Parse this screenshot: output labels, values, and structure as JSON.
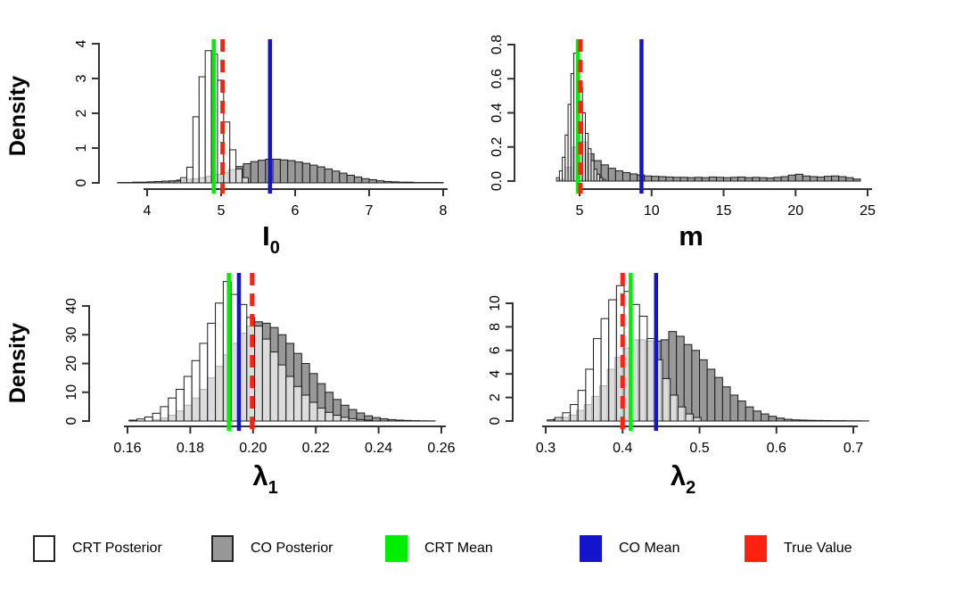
{
  "figure": {
    "background": "#ffffff"
  },
  "colors": {
    "crt_fill": "#ffffff",
    "crt_fill_overlay": "rgba(255,255,255,0.66)",
    "co_fill": "#989898",
    "bar_stroke": "#1b1b1b",
    "axis_color": "#333333",
    "crt_mean": "#00ee00",
    "co_mean": "#1414cc",
    "true_value": "#ff2211"
  },
  "legend": {
    "items": [
      {
        "label": "CRT Posterior",
        "swatch": "crt_fill",
        "border": true
      },
      {
        "label": "CO Posterior",
        "swatch": "co_fill",
        "border": true
      },
      {
        "label": "CRT Mean",
        "swatch": "crt_mean",
        "border": false
      },
      {
        "label": "CO Mean",
        "swatch": "co_mean",
        "border": false
      },
      {
        "label": "True Value",
        "swatch": "true_value",
        "border": false
      }
    ]
  },
  "chart_data": [
    {
      "id": "i0",
      "type": "bar",
      "title": "",
      "xlabel": {
        "base": "I",
        "sub": "0"
      },
      "ylabel": "Density",
      "x_ticks": [
        4,
        5,
        6,
        7,
        8
      ],
      "x_tick_labels": [
        "4",
        "5",
        "6",
        "7",
        "8"
      ],
      "y_ticks": [
        0,
        1,
        2,
        3,
        4
      ],
      "y_tick_labels": [
        "0",
        "1",
        "2",
        "3",
        "4"
      ],
      "xlim": [
        3.6,
        8.05
      ],
      "ylim": [
        0,
        4.1
      ],
      "series": [
        {
          "name": "CO Posterior",
          "bin_start": 3.6,
          "bin_width": 0.1,
          "heights": [
            0.01,
            0.01,
            0.02,
            0.02,
            0.03,
            0.04,
            0.05,
            0.06,
            0.08,
            0.1,
            0.12,
            0.15,
            0.19,
            0.24,
            0.3,
            0.38,
            0.47,
            0.55,
            0.61,
            0.65,
            0.68,
            0.68,
            0.66,
            0.64,
            0.6,
            0.56,
            0.51,
            0.46,
            0.4,
            0.34,
            0.28,
            0.22,
            0.17,
            0.12,
            0.09,
            0.06,
            0.04,
            0.03,
            0.02,
            0.02,
            0.01,
            0.01,
            0.01,
            0.01
          ]
        },
        {
          "name": "CRT Posterior",
          "bin_start": 4.37,
          "bin_width": 0.083,
          "heights": [
            0.05,
            0.15,
            0.45,
            1.9,
            3.05,
            3.8,
            3.7,
            2.95,
            1.75,
            0.95,
            0.4,
            0.15
          ]
        }
      ],
      "lines": [
        {
          "name": "CRT Mean",
          "value": 4.9,
          "dashed": false
        },
        {
          "name": "CO Mean",
          "value": 5.66,
          "dashed": false
        },
        {
          "name": "True Value",
          "value": 5.02,
          "dashed": true
        }
      ]
    },
    {
      "id": "m",
      "type": "bar",
      "title": "",
      "xlabel": {
        "base": "m",
        "sub": ""
      },
      "ylabel": "",
      "x_ticks": [
        5,
        10,
        15,
        20,
        25
      ],
      "x_tick_labels": [
        "5",
        "10",
        "15",
        "20",
        "25"
      ],
      "y_ticks": [
        0.0,
        0.2,
        0.4,
        0.6,
        0.8
      ],
      "y_tick_labels": [
        "0.0",
        "0.2",
        "0.4",
        "0.6",
        "0.8"
      ],
      "xlim": [
        3.4,
        25
      ],
      "ylim": [
        0,
        0.82
      ],
      "series": [
        {
          "name": "CO Posterior",
          "bin_start": 3.5,
          "bin_width": 0.5,
          "heights": [
            0.01,
            0.08,
            0.2,
            0.23,
            0.16,
            0.12,
            0.095,
            0.075,
            0.06,
            0.05,
            0.042,
            0.036,
            0.03,
            0.028,
            0.026,
            0.024,
            0.022,
            0.022,
            0.02,
            0.022,
            0.02,
            0.024,
            0.022,
            0.02,
            0.022,
            0.024,
            0.02,
            0.022,
            0.02,
            0.018,
            0.022,
            0.026,
            0.035,
            0.04,
            0.03,
            0.026,
            0.024,
            0.028,
            0.03,
            0.026,
            0.02,
            0.012
          ]
        },
        {
          "name": "CRT Posterior",
          "bin_start": 3.4,
          "bin_width": 0.2,
          "heights": [
            0.02,
            0.06,
            0.14,
            0.27,
            0.45,
            0.63,
            0.75,
            0.72,
            0.55,
            0.4,
            0.28,
            0.19,
            0.12,
            0.07,
            0.04,
            0.02,
            0.01
          ]
        }
      ],
      "lines": [
        {
          "name": "CRT Mean",
          "value": 4.88,
          "dashed": false
        },
        {
          "name": "CO Mean",
          "value": 9.3,
          "dashed": false
        },
        {
          "name": "True Value",
          "value": 5.05,
          "dashed": true
        }
      ]
    },
    {
      "id": "lambda1",
      "type": "bar",
      "title": "",
      "xlabel": {
        "base": "λ",
        "sub": "1"
      },
      "ylabel": "Density",
      "x_ticks": [
        0.16,
        0.18,
        0.2,
        0.22,
        0.24,
        0.26
      ],
      "x_tick_labels": [
        "0.16",
        "0.18",
        "0.20",
        "0.22",
        "0.24",
        "0.26"
      ],
      "y_ticks": [
        0,
        10,
        20,
        30,
        40
      ],
      "y_tick_labels": [
        "0",
        "10",
        "20",
        "30",
        "40"
      ],
      "xlim": [
        0.155,
        0.262
      ],
      "ylim": [
        0,
        50
      ],
      "series": [
        {
          "name": "CO Posterior",
          "bin_start": 0.168,
          "bin_width": 0.0025,
          "heights": [
            0.5,
            1,
            2,
            3.5,
            5.5,
            8,
            11,
            15,
            19,
            23,
            27,
            30.5,
            33,
            34.5,
            34,
            32.5,
            30,
            27,
            23.5,
            20,
            16.5,
            13,
            10,
            7.5,
            5.5,
            4,
            2.8,
            1.8,
            1.2,
            0.8,
            0.5,
            0.3,
            0.2,
            0.12,
            0.08,
            0.05
          ]
        },
        {
          "name": "CRT Posterior",
          "bin_start": 0.1605,
          "bin_width": 0.0025,
          "heights": [
            0.3,
            0.7,
            1.4,
            2.7,
            5,
            8,
            11,
            15.5,
            21,
            27,
            34,
            41,
            48.5,
            44,
            40.5,
            36,
            33,
            28.5,
            24,
            19.5,
            15.5,
            12,
            9,
            6.5,
            4.5,
            3,
            2,
            1.3,
            0.8,
            0.5,
            0.3
          ]
        }
      ],
      "lines": [
        {
          "name": "CRT Mean",
          "value": 0.1923,
          "dashed": false
        },
        {
          "name": "CO Mean",
          "value": 0.1955,
          "dashed": false
        },
        {
          "name": "True Value",
          "value": 0.1997,
          "dashed": true
        }
      ]
    },
    {
      "id": "lambda2",
      "type": "bar",
      "title": "",
      "xlabel": {
        "base": "λ",
        "sub": "2"
      },
      "ylabel": "",
      "x_ticks": [
        0.3,
        0.4,
        0.5,
        0.6,
        0.7
      ],
      "x_tick_labels": [
        "0.3",
        "0.4",
        "0.5",
        "0.6",
        "0.7"
      ],
      "y_ticks": [
        0,
        2,
        4,
        6,
        8,
        10
      ],
      "y_tick_labels": [
        "0",
        "2",
        "4",
        "6",
        "8",
        "10"
      ],
      "xlim": [
        0.29,
        0.72
      ],
      "ylim": [
        0,
        11.8
      ],
      "series": [
        {
          "name": "CO Posterior",
          "bin_start": 0.31,
          "bin_width": 0.01,
          "heights": [
            0.15,
            0.3,
            0.5,
            0.9,
            1.4,
            2.1,
            3,
            4.4,
            5.4,
            6.2,
            6.9,
            6.9,
            6.8,
            6.8,
            6.9,
            7.6,
            7.2,
            6.5,
            6.0,
            5.2,
            4.4,
            3.7,
            2.9,
            2.2,
            1.7,
            1.2,
            0.85,
            0.6,
            0.4,
            0.25,
            0.15,
            0.1,
            0.08,
            0.06,
            0.05,
            0.04,
            0.03,
            0.03,
            0.02,
            0.02,
            0.01
          ]
        },
        {
          "name": "CRT Posterior",
          "bin_start": 0.302,
          "bin_width": 0.01,
          "heights": [
            0.1,
            0.3,
            0.7,
            1.4,
            2.6,
            4.4,
            7,
            8.7,
            10.3,
            11.5,
            11,
            9.9,
            8.9,
            7,
            5.2,
            3.6,
            2.2,
            1.2,
            0.6,
            0.3
          ]
        }
      ],
      "lines": [
        {
          "name": "CRT Mean",
          "value": 0.4105,
          "dashed": false
        },
        {
          "name": "CO Mean",
          "value": 0.4435,
          "dashed": false
        },
        {
          "name": "True Value",
          "value": 0.4,
          "dashed": true
        }
      ]
    }
  ]
}
